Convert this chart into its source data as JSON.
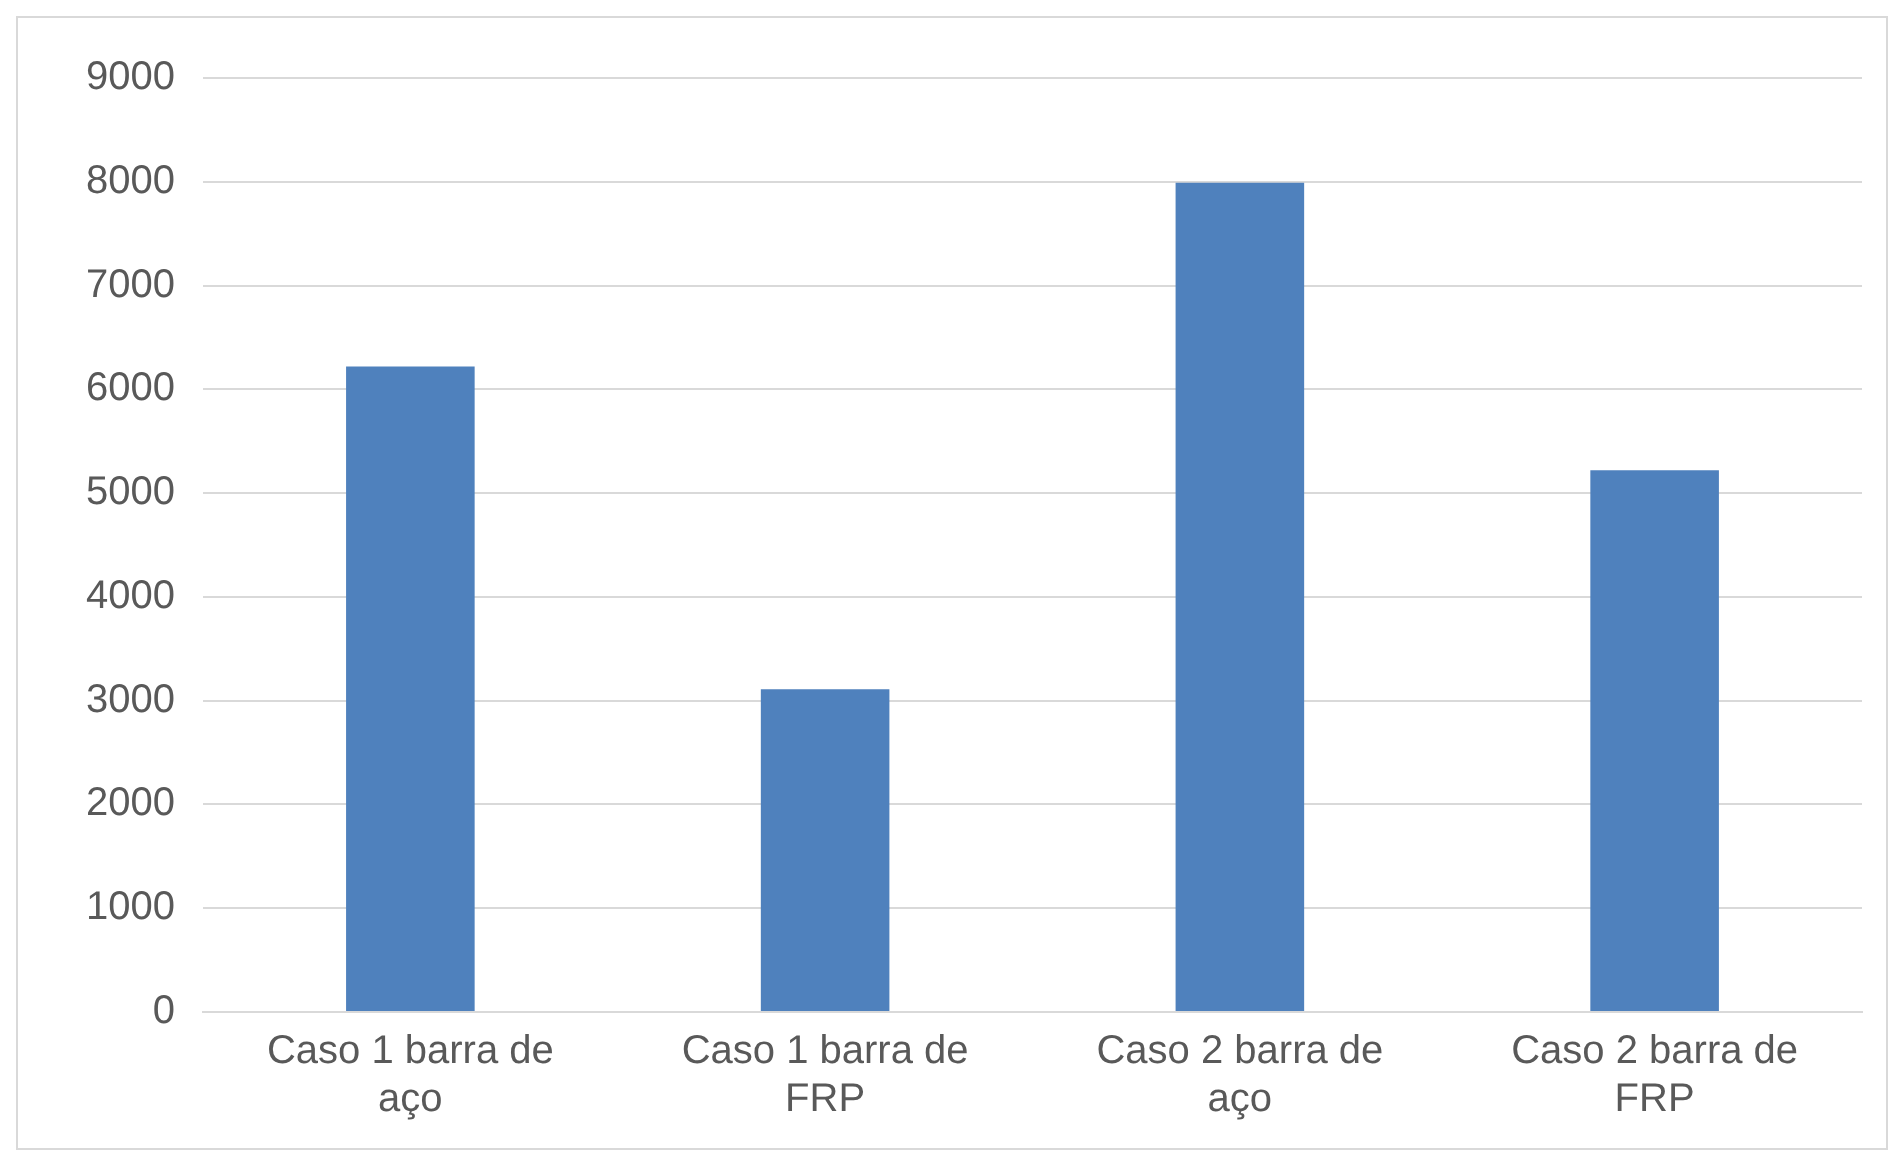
{
  "chart_data": {
    "type": "bar",
    "categories": [
      "Caso 1 barra de aço",
      "Caso 1 barra de FRP",
      "Caso 2 barra de aço",
      "Caso 2 barra de FRP"
    ],
    "values": [
      6220,
      3110,
      7990,
      5220
    ],
    "color": "#4f81bd",
    "ylim": [
      0,
      9000
    ],
    "yticks": [
      0,
      1000,
      2000,
      3000,
      4000,
      5000,
      6000,
      7000,
      8000,
      9000
    ],
    "grid": "y",
    "legend": false
  }
}
